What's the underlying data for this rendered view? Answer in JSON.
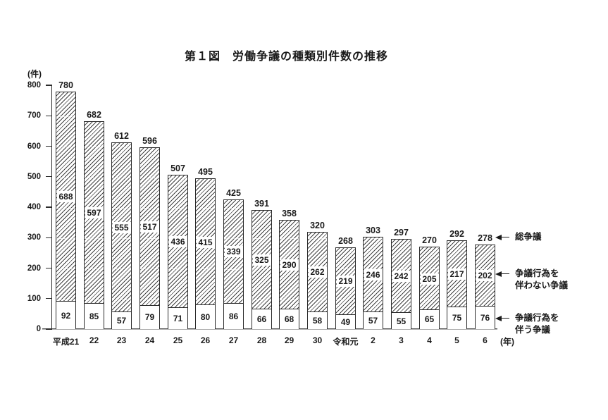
{
  "title": "第１図　労働争議の種類別件数の推移",
  "y_axis": {
    "unit": "(件)",
    "ticks": [
      0,
      100,
      200,
      300,
      400,
      500,
      600,
      700,
      800
    ]
  },
  "x_axis": {
    "unit": "(年)"
  },
  "chart_data": {
    "type": "bar",
    "stacked": true,
    "title": "第１図　労働争議の種類別件数の推移",
    "ylabel": "(件)",
    "xlabel": "(年)",
    "ylim": [
      0,
      800
    ],
    "y_tick_step": 100,
    "grid": false,
    "categories": [
      "平成21",
      "22",
      "23",
      "24",
      "25",
      "26",
      "27",
      "28",
      "29",
      "30",
      "令和元",
      "2",
      "3",
      "4",
      "5",
      "6"
    ],
    "series": [
      {
        "name": "争議行為を伴う争議",
        "style": "plain-white",
        "values": [
          92,
          85,
          57,
          79,
          71,
          80,
          86,
          66,
          68,
          58,
          49,
          57,
          55,
          65,
          75,
          76
        ]
      },
      {
        "name": "争議行為を伴わない争議",
        "style": "diagonal-hatch",
        "values": [
          688,
          597,
          555,
          517,
          436,
          415,
          339,
          325,
          290,
          262,
          219,
          246,
          242,
          205,
          217,
          202
        ]
      }
    ],
    "totals": {
      "name": "総争議",
      "values": [
        780,
        682,
        612,
        596,
        507,
        495,
        425,
        391,
        358,
        320,
        268,
        303,
        297,
        270,
        292,
        278
      ]
    }
  },
  "annotations": [
    {
      "icon": "left-arrow-icon",
      "lines": [
        "総争議"
      ]
    },
    {
      "icon": "left-arrow-icon",
      "lines": [
        "争議行為を",
        "伴わない争議"
      ]
    },
    {
      "icon": "left-arrow-icon",
      "lines": [
        "争議行為を",
        "伴う争議"
      ]
    }
  ]
}
